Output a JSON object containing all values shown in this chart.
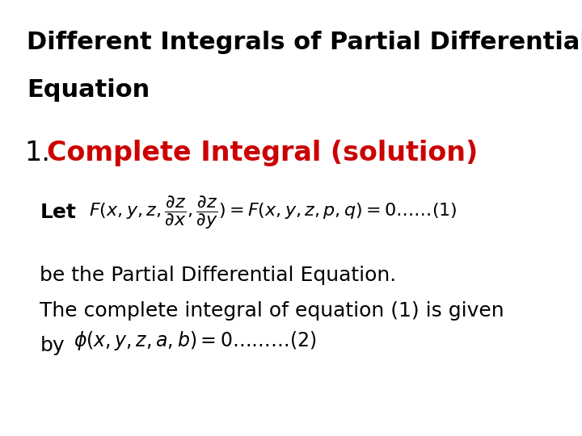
{
  "bg_color": "#ffffff",
  "title_line1": "Different Integrals of Partial Differential",
  "title_line2": "Equation",
  "title_color": "#000000",
  "title_fontsize": 22,
  "heading_number": "1.",
  "heading_text": "Complete Integral (solution)",
  "heading_color_number": "#000000",
  "heading_color_text": "#cc0000",
  "heading_fontsize": 24,
  "let_label": "Let",
  "eq1_latex": "$F(x, y, z, \\dfrac{\\partial z}{\\partial x}, \\dfrac{\\partial z}{\\partial y}) = F(x, y, z, p, q) = 0 \\ldots\\ldots(1)$",
  "body_line1": "be the Partial Differential Equation.",
  "body_line2": "The complete integral of equation (1) is given",
  "body_line3": "by",
  "eq2_latex": "$\\phi(x, y, z, a, b) = 0 \\ldots\\ldots\\ldots(2)$",
  "body_fontsize": 18,
  "math_fontsize": 16
}
